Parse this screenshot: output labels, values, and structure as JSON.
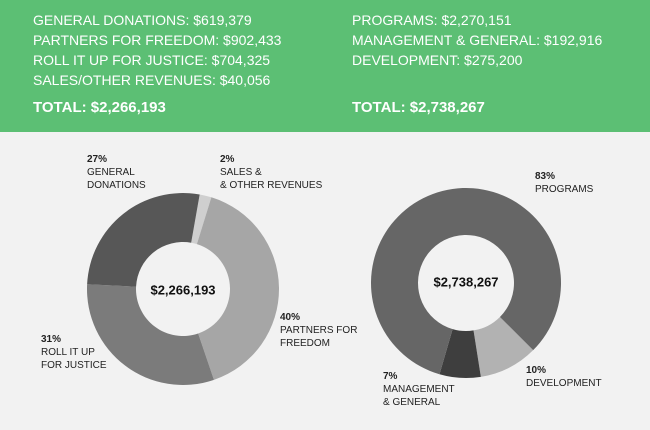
{
  "revenue": {
    "lines": [
      "GENERAL DONATIONS: $619,379",
      "PARTNERS FOR FREEDOM: $902,433",
      "ROLL IT UP FOR JUSTICE: $704,325",
      "SALES/OTHER REVENUES: $40,056"
    ],
    "total": "TOTAL: $2,266,193"
  },
  "expenses": {
    "lines": [
      "PROGRAMS: $2,270,151",
      "MANAGEMENT & GENERAL: $192,916",
      "DEVELOPMENT: $275,200"
    ],
    "total": "TOTAL: $2,738,267"
  },
  "colors": {
    "header_bg": "#5cbf74",
    "background": "#f2f2f2"
  },
  "chart_data": [
    {
      "type": "pie",
      "variant": "donut",
      "center_label": "$2,266,193",
      "slices": [
        {
          "pct": "2%",
          "label1": "SALES &",
          "label2": "& OTHER REVENUES",
          "value": 2,
          "color": "#cfcfcf"
        },
        {
          "pct": "40%",
          "label1": "PARTNERS FOR",
          "label2": "FREEDOM",
          "value": 40,
          "color": "#a6a6a6"
        },
        {
          "pct": "31%",
          "label1": "ROLL IT UP",
          "label2": "FOR JUSTICE",
          "value": 31,
          "color": "#7b7b7b"
        },
        {
          "pct": "27%",
          "label1": "GENERAL",
          "label2": "DONATIONS",
          "value": 27,
          "color": "#575757"
        }
      ]
    },
    {
      "type": "pie",
      "variant": "donut",
      "center_label": "$2,738,267",
      "slices": [
        {
          "pct": "10%",
          "label1": "DEVELOPMENT",
          "label2": "",
          "value": 10,
          "color": "#b2b2b2"
        },
        {
          "pct": "7%",
          "label1": "MANAGEMENT",
          "label2": "& GENERAL",
          "value": 7,
          "color": "#3e3e3e"
        },
        {
          "pct": "83%",
          "label1": "PROGRAMS",
          "label2": "",
          "value": 83,
          "color": "#666666"
        }
      ]
    }
  ]
}
